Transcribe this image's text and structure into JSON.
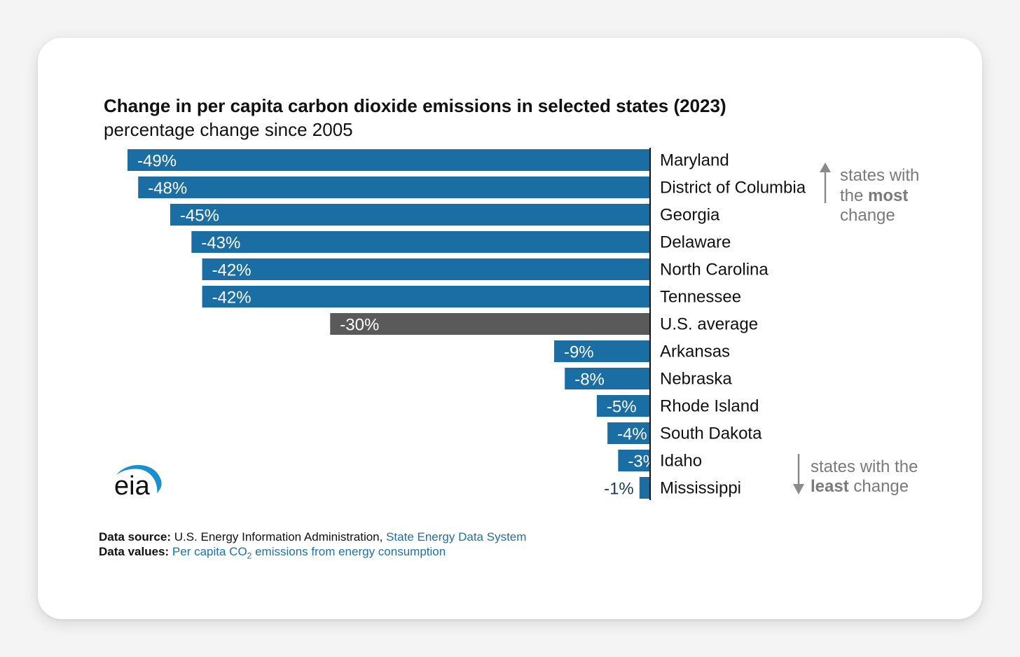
{
  "chart_data": {
    "type": "bar",
    "orientation": "horizontal",
    "title": "Change in per capita carbon dioxide emissions in selected states (2023)",
    "subtitle": "percentage change since 2005",
    "categories": [
      "Maryland",
      "District of Columbia",
      "Georgia",
      "Delaware",
      "North Carolina",
      "Tennessee",
      "U.S. average",
      "Arkansas",
      "Nebraska",
      "Rhode Island",
      "South Dakota",
      "Idaho",
      "Mississippi"
    ],
    "values": [
      -49,
      -48,
      -45,
      -43,
      -42,
      -42,
      -30,
      -9,
      -8,
      -5,
      -4,
      -3,
      -1
    ],
    "labels": [
      "-49%",
      "-48%",
      "-45%",
      "-43%",
      "-42%",
      "-42%",
      "-30%",
      "-9%",
      "-8%",
      "-5%",
      "-4%",
      "-3%",
      "-1%"
    ],
    "highlight_category": "U.S. average",
    "xlim": [
      -50,
      0
    ],
    "xlabel": "",
    "ylabel": "",
    "annotations": {
      "most": {
        "line1": "states with",
        "line2_pre": "the ",
        "line2_bold": "most",
        "line3": "change"
      },
      "least": {
        "line1": "states with the",
        "line2_bold": "least",
        "line2_post": " change"
      }
    }
  },
  "colors": {
    "bar": "#1a6ea3",
    "highlight": "#5a5a5a",
    "label_inside": "#ffffff",
    "label_outside": "#1a3a5c",
    "annotation": "#7a7a7a",
    "logo_arc": "#1a8fd0"
  },
  "logo": {
    "text": "eia"
  },
  "footer": {
    "source_label": "Data source:",
    "source_text": "U.S. Energy Information Administration,",
    "source_link": "State Energy Data System",
    "values_label": "Data values:",
    "values_link_pre": "Per capita CO",
    "values_link_sub": "2",
    "values_link_post": " emissions from energy consumption"
  }
}
